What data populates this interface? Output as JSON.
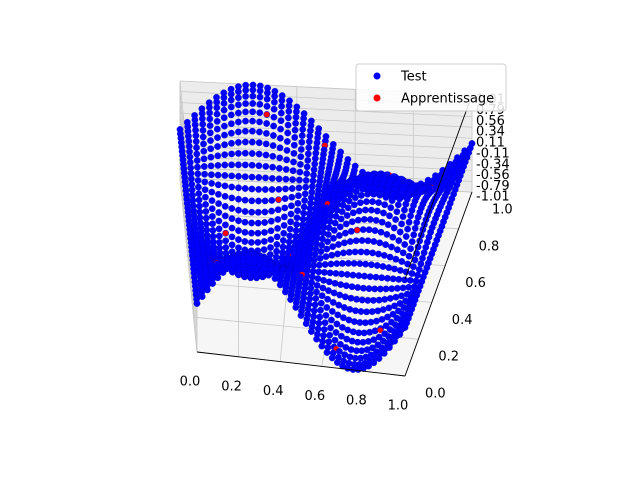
{
  "chart_data": {
    "type": "scatter",
    "projection": "3d",
    "title": "",
    "xlabel": "",
    "ylabel": "",
    "zlabel": "",
    "xlim": [
      0,
      1
    ],
    "ylim": [
      0,
      1
    ],
    "zlim": [
      -1.01,
      1.01
    ],
    "x_ticks": [
      "0.0",
      "0.2",
      "0.4",
      "0.6",
      "0.8",
      "1.0"
    ],
    "y_ticks": [
      "0.0",
      "0.2",
      "0.4",
      "0.6",
      "0.8",
      "1.0"
    ],
    "z_ticks": [
      "-1.01",
      "-0.79",
      "-0.56",
      "-0.34",
      "-0.11",
      "0.11",
      "0.34",
      "0.56",
      "0.79",
      "1.01"
    ],
    "surface_function": "sin(2*pi*x)*cos(2*pi*y) over the unit square, sampled on a dense grid",
    "grid": true,
    "legend": {
      "placement": "top-right"
    },
    "series": [
      {
        "name": "Test",
        "color": "#0000ff",
        "grid_resolution": 41
      },
      {
        "name": "Apprentissage",
        "color": "#ff0000",
        "points": [
          [
            0.1,
            0.15
          ],
          [
            0.22,
            0.42
          ],
          [
            0.35,
            0.7
          ],
          [
            0.48,
            0.22
          ],
          [
            0.55,
            0.55
          ],
          [
            0.62,
            0.85
          ],
          [
            0.7,
            0.35
          ],
          [
            0.78,
            0.62
          ],
          [
            0.85,
            0.12
          ],
          [
            0.3,
            0.9
          ],
          [
            0.15,
            0.6
          ],
          [
            0.42,
            0.45
          ],
          [
            0.66,
            0.05
          ],
          [
            0.9,
            0.8
          ],
          [
            0.5,
            0.95
          ]
        ]
      }
    ]
  }
}
